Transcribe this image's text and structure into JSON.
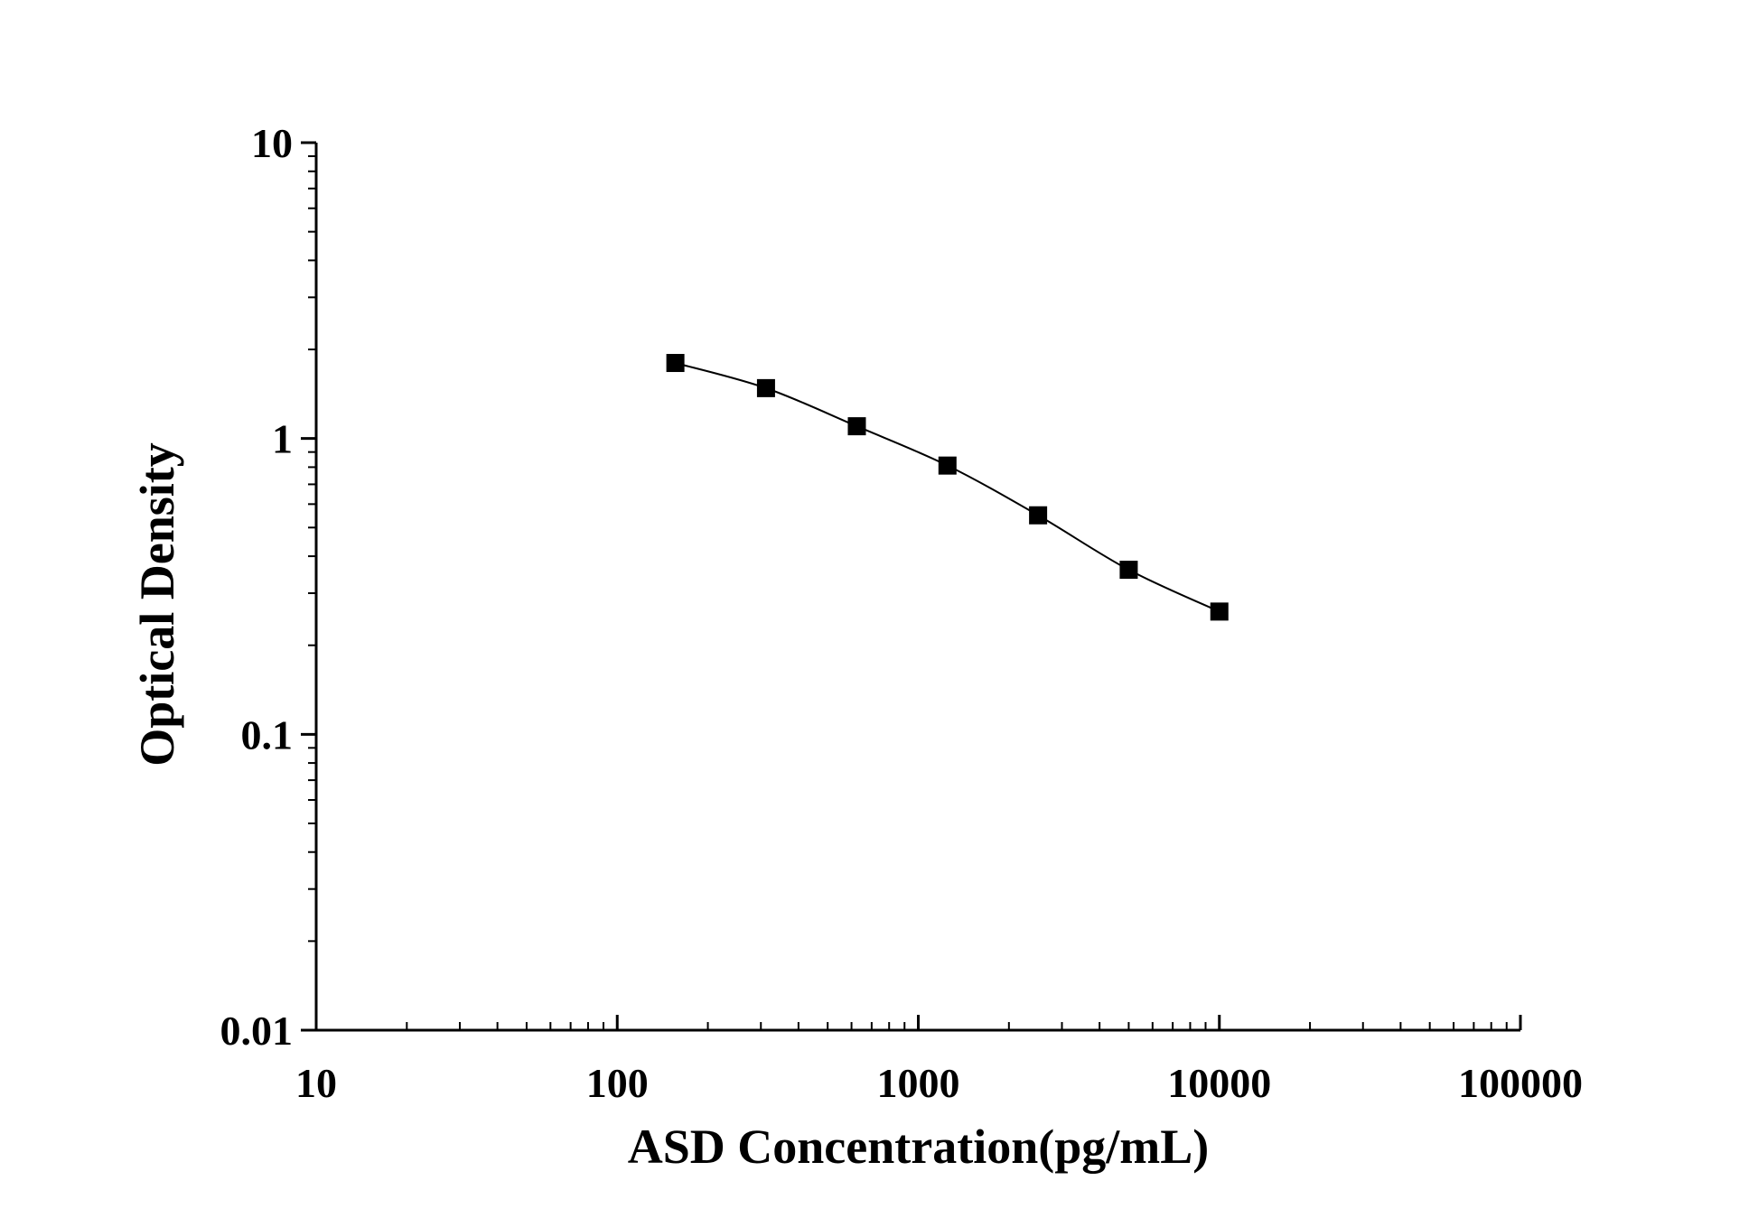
{
  "chart_data": {
    "type": "scatter",
    "xlabel": "ASD Concentration(pg/mL)",
    "ylabel": "Optical Density",
    "xscale": "log",
    "yscale": "log",
    "xlim": [
      10,
      100000
    ],
    "ylim": [
      0.01,
      10
    ],
    "x_ticks": [
      10,
      100,
      1000,
      10000,
      100000
    ],
    "x_tick_labels": [
      "10",
      "100",
      "1000",
      "10000",
      "100000"
    ],
    "y_ticks": [
      0.01,
      0.1,
      1,
      10
    ],
    "y_tick_labels": [
      "0.01",
      "0.1",
      "1",
      "10"
    ],
    "grid": false,
    "legend": "none",
    "series": [
      {
        "marker": "square",
        "line": "smooth",
        "color": "#000000",
        "x": [
          156,
          312,
          625,
          1250,
          2500,
          5000,
          10000
        ],
        "y": [
          1.8,
          1.48,
          1.1,
          0.81,
          0.55,
          0.36,
          0.26
        ]
      }
    ]
  }
}
